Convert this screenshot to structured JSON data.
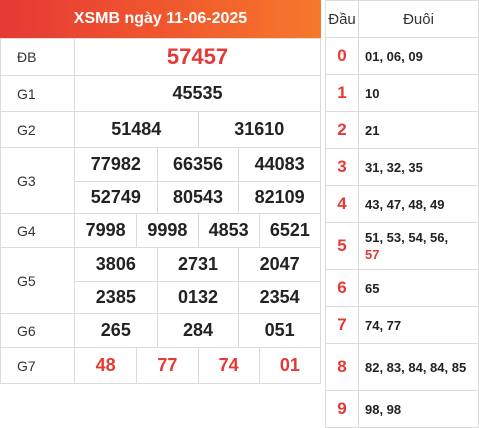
{
  "title": "XSMB ngày 11-06-2025",
  "prizes": {
    "db": {
      "label": "ĐB",
      "numbers": [
        "57457"
      ]
    },
    "g1": {
      "label": "G1",
      "numbers": [
        "45535"
      ]
    },
    "g2": {
      "label": "G2",
      "numbers": [
        "51484",
        "31610"
      ]
    },
    "g3": {
      "label": "G3",
      "numbers": [
        "77982",
        "66356",
        "44083",
        "52749",
        "80543",
        "82109"
      ]
    },
    "g4": {
      "label": "G4",
      "numbers": [
        "7998",
        "9998",
        "4853",
        "6521"
      ]
    },
    "g5": {
      "label": "G5",
      "numbers": [
        "3806",
        "2731",
        "2047",
        "2385",
        "0132",
        "2354"
      ]
    },
    "g6": {
      "label": "G6",
      "numbers": [
        "265",
        "284",
        "051"
      ]
    },
    "g7": {
      "label": "G7",
      "numbers": [
        "48",
        "77",
        "74",
        "01"
      ]
    }
  },
  "loto": {
    "header_dau": "Đầu",
    "header_duoi": "Đuôi",
    "rows": [
      {
        "dau": "0",
        "duoi": "01, 06, 09",
        "highlight": ""
      },
      {
        "dau": "1",
        "duoi": "10",
        "highlight": ""
      },
      {
        "dau": "2",
        "duoi": "21",
        "highlight": ""
      },
      {
        "dau": "3",
        "duoi": "31, 32, 35",
        "highlight": ""
      },
      {
        "dau": "4",
        "duoi": "43, 47, 48, 49",
        "highlight": ""
      },
      {
        "dau": "5",
        "duoi": "51, 53, 54, 56,",
        "highlight": "57"
      },
      {
        "dau": "6",
        "duoi": "65",
        "highlight": ""
      },
      {
        "dau": "7",
        "duoi": "74, 77",
        "highlight": ""
      },
      {
        "dau": "8",
        "duoi": "82, 83, 84, 84, 85",
        "highlight": ""
      },
      {
        "dau": "9",
        "duoi": "98, 98",
        "highlight": ""
      }
    ]
  }
}
